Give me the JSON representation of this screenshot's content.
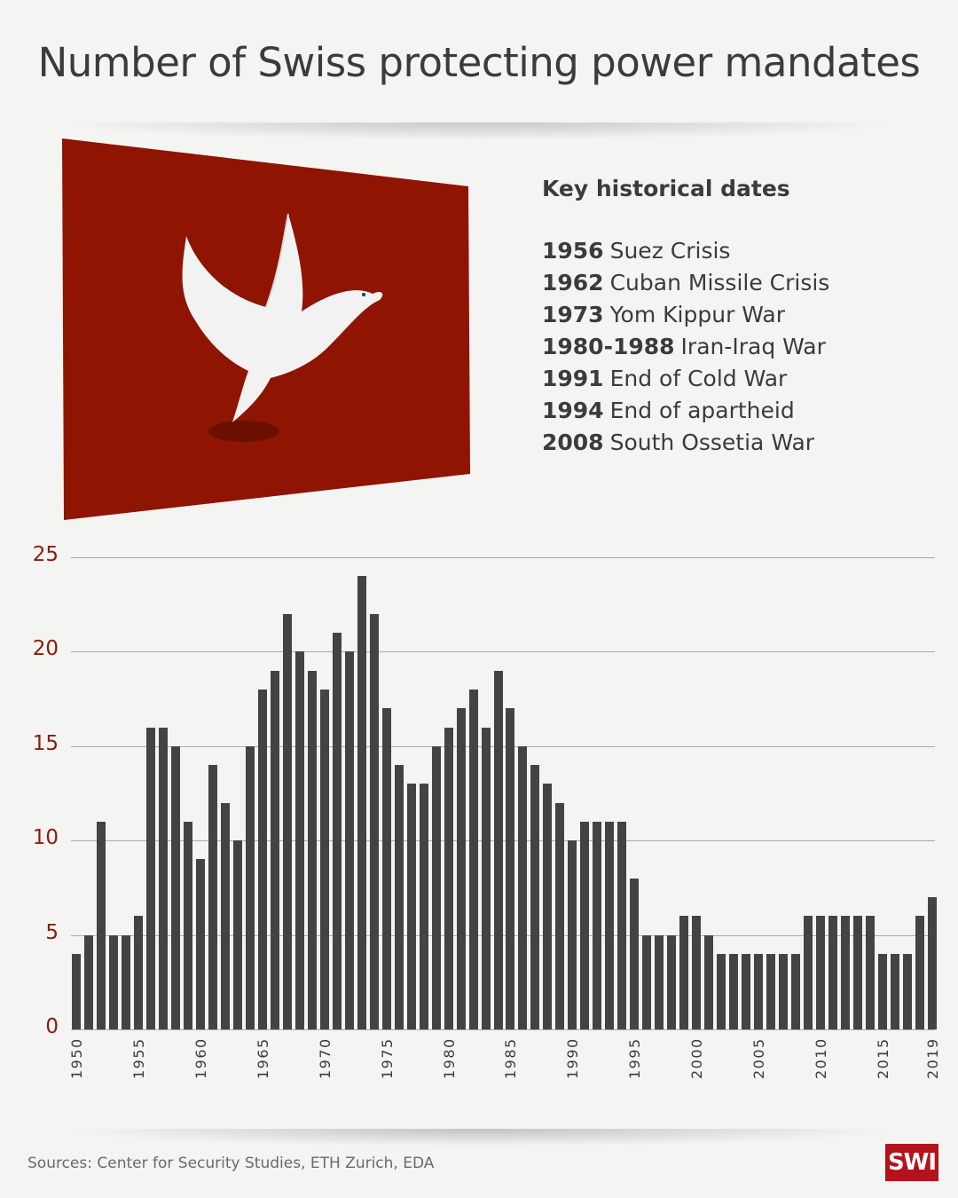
{
  "title": "Number of Swiss protecting power mandates",
  "key": {
    "title": "Key historical dates",
    "items": [
      {
        "year": "1956",
        "event": "Suez Crisis"
      },
      {
        "year": "1962",
        "event": "Cuban Missile Crisis"
      },
      {
        "year": "1973",
        "event": "Yom Kippur War"
      },
      {
        "year": "1980-1988",
        "event": "Iran-Iraq War"
      },
      {
        "year": "1991",
        "event": "End of Cold War"
      },
      {
        "year": "1994",
        "event": "End of apartheid"
      },
      {
        "year": "2008",
        "event": "South Ossetia War"
      }
    ]
  },
  "footer": {
    "source": "Sources: Center for Security Studies, ETH Zurich, EDA",
    "logo": "SWI"
  },
  "colors": {
    "bar": "#434343",
    "axis_label": "#8b1a0e",
    "flag": "#8f1402",
    "logo": "#b5121b",
    "background": "#f4f4f2"
  },
  "chart_data": {
    "type": "bar",
    "title": "Number of Swiss protecting power mandates",
    "xlabel": "",
    "ylabel": "",
    "ylim": [
      0,
      25
    ],
    "yticks": [
      0,
      5,
      10,
      15,
      20,
      25
    ],
    "xtick_labels": [
      "1950",
      "1955",
      "1960",
      "1965",
      "1970",
      "1975",
      "1980",
      "1985",
      "1990",
      "1995",
      "2000",
      "2005",
      "2010",
      "2015",
      "2019"
    ],
    "grid": true,
    "categories": [
      1950,
      1951,
      1952,
      1953,
      1954,
      1955,
      1956,
      1957,
      1958,
      1959,
      1960,
      1961,
      1962,
      1963,
      1964,
      1965,
      1966,
      1967,
      1968,
      1969,
      1970,
      1971,
      1972,
      1973,
      1974,
      1975,
      1976,
      1977,
      1978,
      1979,
      1980,
      1981,
      1982,
      1983,
      1984,
      1985,
      1986,
      1987,
      1988,
      1989,
      1990,
      1991,
      1992,
      1993,
      1994,
      1995,
      1996,
      1997,
      1998,
      1999,
      2000,
      2001,
      2002,
      2003,
      2004,
      2005,
      2006,
      2007,
      2008,
      2009,
      2010,
      2011,
      2012,
      2013,
      2014,
      2015,
      2016,
      2017,
      2018,
      2019
    ],
    "values": [
      4,
      5,
      11,
      5,
      5,
      6,
      16,
      16,
      15,
      11,
      9,
      14,
      12,
      10,
      15,
      18,
      19,
      22,
      20,
      19,
      18,
      21,
      20,
      24,
      22,
      17,
      14,
      13,
      13,
      15,
      16,
      17,
      18,
      16,
      19,
      17,
      15,
      14,
      13,
      12,
      10,
      11,
      11,
      11,
      11,
      8,
      5,
      5,
      5,
      6,
      6,
      5,
      4,
      4,
      4,
      4,
      4,
      4,
      4,
      6,
      6,
      6,
      6,
      6,
      6,
      4,
      4,
      4,
      6,
      7
    ]
  }
}
